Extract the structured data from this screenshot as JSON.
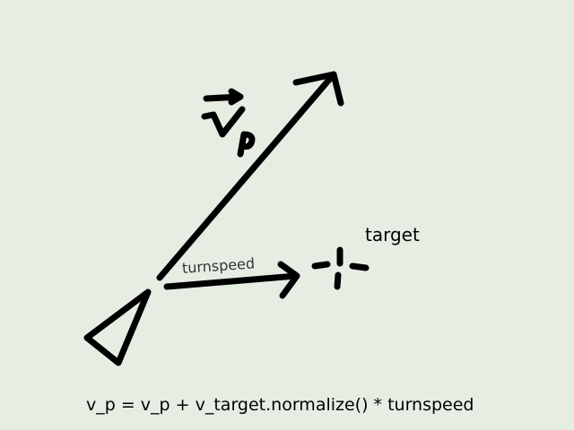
{
  "labels": {
    "target": "target",
    "turnspeed": "turnspeed"
  },
  "formula": "v_p = v_p + v_target.normalize() * turnspeed",
  "colors": {
    "background": "#e6eee4",
    "ink": "#000000"
  }
}
